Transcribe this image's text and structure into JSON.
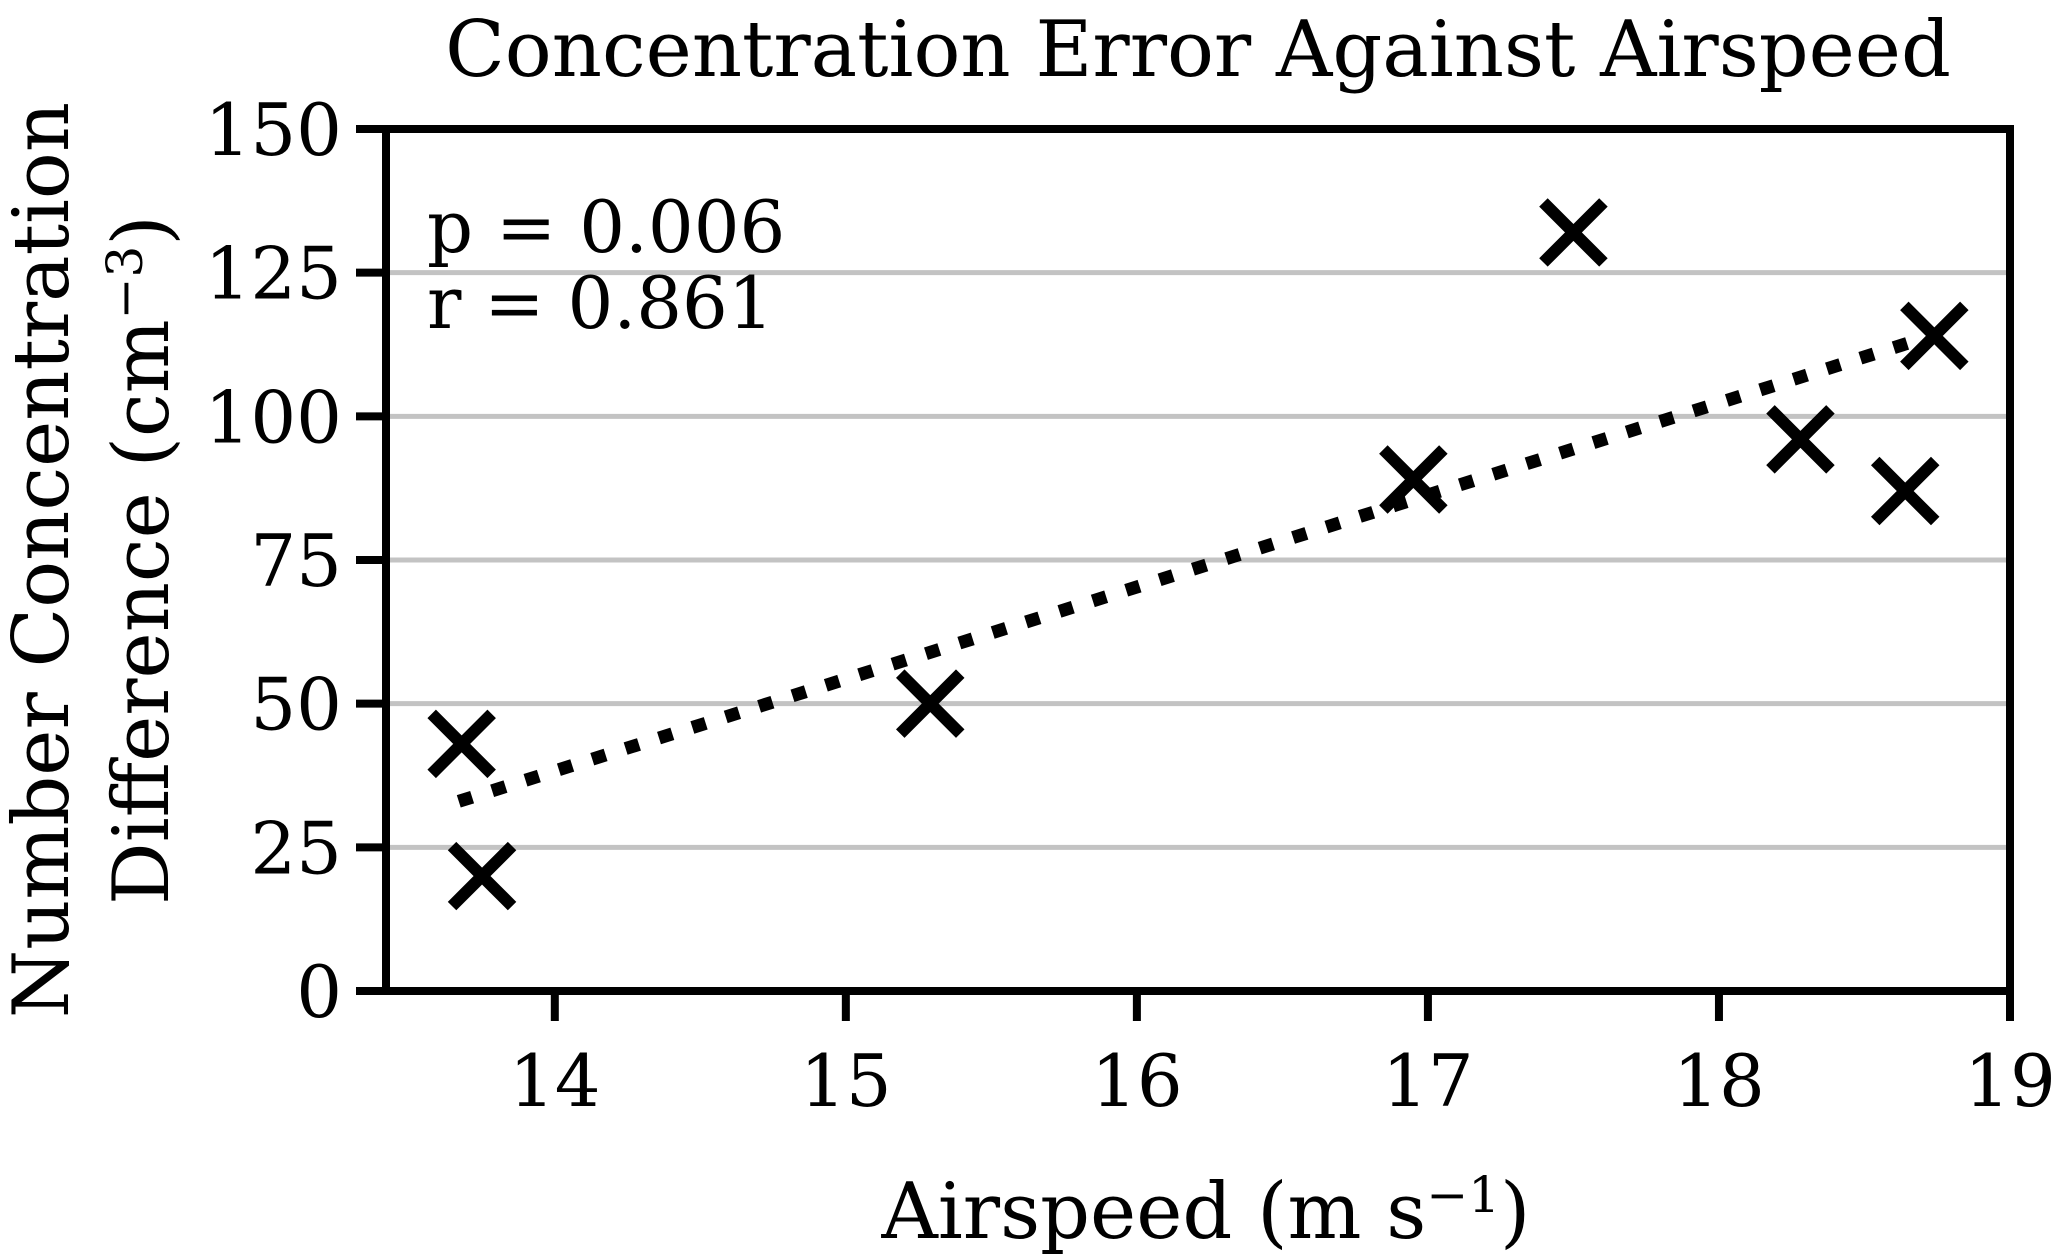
{
  "title": "Concentration Error Against Airspeed",
  "colors": {
    "foreground": "#000000",
    "gridline": "#c3c3c3",
    "background": "#ffffff"
  },
  "chart_data": {
    "type": "scatter",
    "title": "Concentration Error Against Airspeed",
    "xlabel": "Airspeed (m s⁻¹)",
    "xlabel_parts": {
      "base": "Airspeed (m s",
      "sup": "−1",
      "end": ")"
    },
    "ylabel_line1": "Number Concentration",
    "ylabel_line2": "Difference (cm⁻³)",
    "ylabel_line2_parts": {
      "base": "Difference (cm",
      "sup": "−3",
      "end": ")"
    },
    "xlim": [
      13.42,
      19.0
    ],
    "ylim": [
      0,
      150
    ],
    "xticks": [
      14,
      15,
      16,
      17,
      18,
      19
    ],
    "yticks": [
      0,
      25,
      50,
      75,
      100,
      125,
      150
    ],
    "grid": "horizontal-only",
    "marker": "x",
    "points": [
      {
        "x": 13.68,
        "y": 43
      },
      {
        "x": 13.75,
        "y": 20
      },
      {
        "x": 15.29,
        "y": 50
      },
      {
        "x": 16.95,
        "y": 89
      },
      {
        "x": 17.5,
        "y": 132
      },
      {
        "x": 18.28,
        "y": 96
      },
      {
        "x": 18.64,
        "y": 87
      },
      {
        "x": 18.74,
        "y": 114
      }
    ],
    "trendline": {
      "style": "dotted",
      "x1": 13.67,
      "y1": 33,
      "x2": 18.76,
      "y2": 114.5
    },
    "annotations": [
      "p = 0.006",
      "r = 0.861"
    ],
    "stats": {
      "p": "0.006",
      "r": "0.861"
    },
    "legend": "none"
  }
}
